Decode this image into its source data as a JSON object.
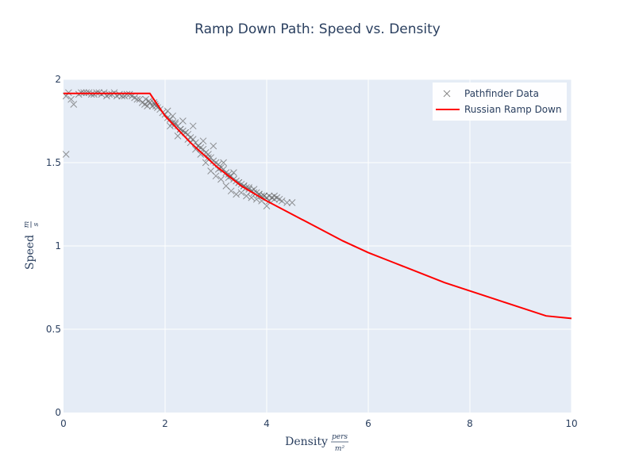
{
  "chart_data": {
    "type": "scatter",
    "title": "Ramp Down Path: Speed vs. Density",
    "xlabel": "Density",
    "xlabel_unit": {
      "numerator": "pers",
      "denominator": "m²"
    },
    "ylabel": "Speed",
    "ylabel_unit": {
      "numerator": "m",
      "denominator": "s"
    },
    "xlim": [
      0,
      10
    ],
    "ylim": [
      0,
      2
    ],
    "x_ticks": [
      0,
      2,
      4,
      6,
      8,
      10
    ],
    "x_tick_labels": [
      "0",
      "2",
      "4",
      "6",
      "8",
      "10"
    ],
    "y_ticks": [
      0,
      0.5,
      1,
      1.5,
      2
    ],
    "y_tick_labels": [
      "0",
      "0.5",
      "1",
      "1.5",
      "2"
    ],
    "grid": true,
    "plot_background": "#e5ecf6",
    "legend_position": "top-right",
    "series": [
      {
        "name": "Pathfinder Data",
        "kind": "scatter",
        "marker": "x",
        "color": "#696969",
        "x": [
          0.05,
          0.15,
          0.2,
          0.05,
          0.1,
          0.3,
          0.4,
          0.5,
          0.6,
          0.7,
          0.8,
          0.9,
          1.0,
          1.1,
          1.2,
          1.3,
          0.35,
          0.45,
          0.55,
          0.65,
          0.75,
          0.85,
          0.95,
          1.05,
          1.15,
          1.25,
          1.35,
          1.4,
          1.45,
          1.5,
          1.55,
          1.6,
          1.65,
          1.7,
          1.75,
          1.8,
          1.85,
          1.62,
          1.68,
          1.78,
          1.82,
          1.9,
          1.95,
          2.0,
          2.05,
          2.1,
          2.15,
          2.2,
          2.25,
          2.3,
          2.35,
          2.4,
          2.45,
          2.5,
          2.55,
          2.6,
          2.65,
          2.7,
          2.75,
          2.8,
          2.85,
          2.9,
          2.95,
          3.0,
          3.05,
          3.1,
          3.15,
          3.2,
          3.25,
          3.3,
          3.35,
          3.4,
          3.45,
          3.5,
          3.55,
          3.6,
          3.65,
          3.7,
          3.75,
          3.8,
          3.85,
          3.9,
          3.95,
          4.0,
          4.05,
          4.1,
          4.15,
          4.2,
          4.25,
          4.3,
          4.4,
          4.5,
          2.1,
          2.2,
          2.3,
          2.4,
          2.5,
          2.6,
          2.7,
          2.8,
          2.9,
          3.0,
          3.1,
          3.2,
          3.3,
          3.4,
          3.5,
          3.6,
          3.7,
          3.8,
          3.9,
          4.0,
          2.15,
          2.35,
          2.55,
          2.75,
          2.95,
          3.15,
          3.35,
          3.55,
          3.75,
          3.95,
          4.15,
          2.05,
          2.25,
          2.45,
          2.65,
          2.85,
          3.05,
          3.25,
          3.45,
          3.65,
          3.85,
          4.05
        ],
        "y": [
          1.55,
          1.88,
          1.85,
          1.9,
          1.92,
          1.91,
          1.92,
          1.92,
          1.91,
          1.92,
          1.92,
          1.91,
          1.92,
          1.91,
          1.9,
          1.91,
          1.92,
          1.92,
          1.91,
          1.92,
          1.91,
          1.9,
          1.91,
          1.9,
          1.9,
          1.91,
          1.9,
          1.89,
          1.88,
          1.88,
          1.86,
          1.85,
          1.84,
          1.86,
          1.84,
          1.85,
          1.83,
          1.88,
          1.87,
          1.86,
          1.84,
          1.82,
          1.8,
          1.79,
          1.77,
          1.76,
          1.74,
          1.73,
          1.72,
          1.7,
          1.69,
          1.68,
          1.67,
          1.65,
          1.64,
          1.62,
          1.6,
          1.59,
          1.58,
          1.56,
          1.55,
          1.53,
          1.51,
          1.5,
          1.49,
          1.47,
          1.46,
          1.44,
          1.43,
          1.42,
          1.4,
          1.39,
          1.38,
          1.37,
          1.36,
          1.35,
          1.34,
          1.33,
          1.32,
          1.32,
          1.31,
          1.3,
          1.3,
          1.29,
          1.3,
          1.29,
          1.28,
          1.29,
          1.28,
          1.27,
          1.26,
          1.26,
          1.72,
          1.74,
          1.7,
          1.68,
          1.62,
          1.58,
          1.55,
          1.5,
          1.45,
          1.42,
          1.4,
          1.36,
          1.33,
          1.31,
          1.32,
          1.3,
          1.29,
          1.28,
          1.27,
          1.24,
          1.78,
          1.75,
          1.72,
          1.63,
          1.6,
          1.5,
          1.44,
          1.36,
          1.34,
          1.3,
          1.3,
          1.81,
          1.66,
          1.64,
          1.6,
          1.53,
          1.46,
          1.41,
          1.38,
          1.35,
          1.31,
          1.27
        ]
      },
      {
        "name": "Russian Ramp Down",
        "kind": "line",
        "color": "#ff0000",
        "x": [
          0,
          1.7,
          2.0,
          2.5,
          3.0,
          3.5,
          4.0,
          4.5,
          5.0,
          5.5,
          6.0,
          6.5,
          7.0,
          7.5,
          8.0,
          8.5,
          9.0,
          9.5,
          10.0
        ],
        "y": [
          1.915,
          1.915,
          1.78,
          1.62,
          1.48,
          1.36,
          1.27,
          1.19,
          1.11,
          1.03,
          0.96,
          0.9,
          0.84,
          0.78,
          0.73,
          0.68,
          0.63,
          0.58,
          0.565
        ]
      }
    ]
  }
}
